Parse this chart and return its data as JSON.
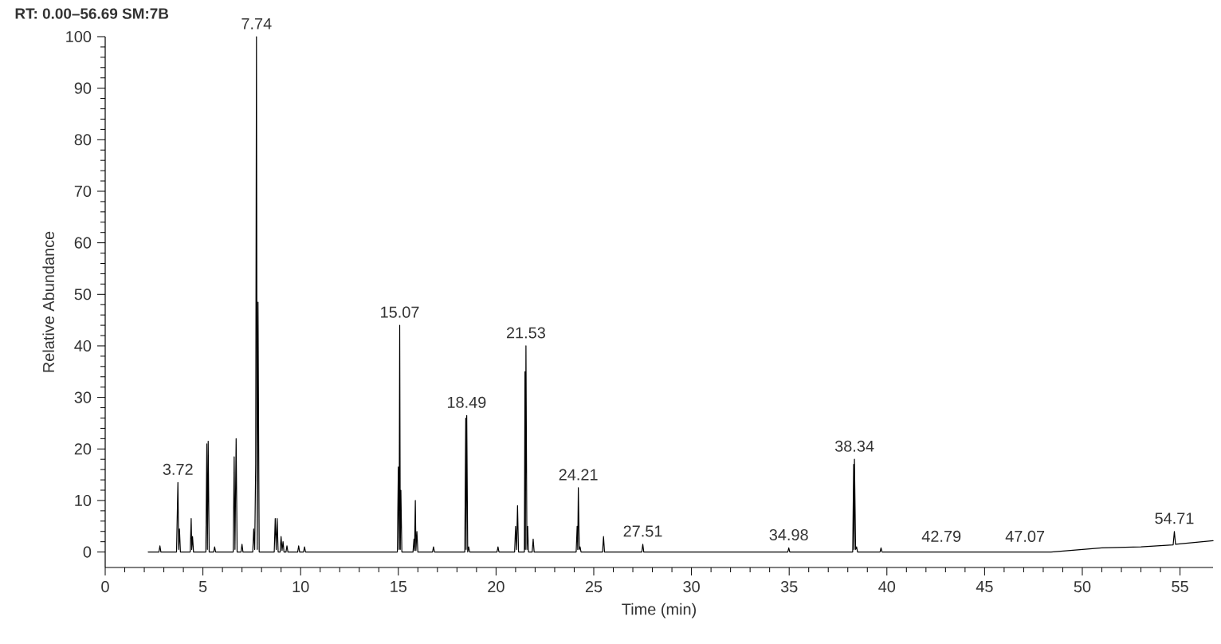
{
  "chart_data": {
    "type": "line",
    "title": "RT: 0.00–56.69  SM:7B",
    "xlabel": "Time (min)",
    "ylabel": "Relative Abundance",
    "xlim": [
      0,
      56.69
    ],
    "ylim": [
      -3,
      100
    ],
    "xticks": [
      0,
      5,
      10,
      15,
      20,
      25,
      30,
      35,
      40,
      45,
      50,
      55
    ],
    "yticks": [
      0,
      10,
      20,
      30,
      40,
      50,
      60,
      70,
      80,
      90,
      100
    ],
    "grid": false,
    "marker": "none",
    "line_style": "solid",
    "series": [
      {
        "color": "#000000",
        "x": [
          2.2,
          2.75,
          2.8,
          2.85,
          3.65,
          3.72,
          3.76,
          3.8,
          3.85,
          4.35,
          4.4,
          4.43,
          4.47,
          4.52,
          5.15,
          5.2,
          5.23,
          5.27,
          5.32,
          5.55,
          5.6,
          5.65,
          6.55,
          6.6,
          6.64,
          6.7,
          6.75,
          6.95,
          7.0,
          7.05,
          7.55,
          7.6,
          7.65,
          7.7,
          7.74,
          7.78,
          7.82,
          7.88,
          8.65,
          8.7,
          8.75,
          8.8,
          8.85,
          8.95,
          9.0,
          9.05,
          9.1,
          9.15,
          9.25,
          9.3,
          9.35,
          9.85,
          9.9,
          9.95,
          10.15,
          10.2,
          10.25,
          14.95,
          15.0,
          15.04,
          15.07,
          15.1,
          15.13,
          15.18,
          15.75,
          15.8,
          15.83,
          15.87,
          15.9,
          15.95,
          16.0,
          16.75,
          16.8,
          16.85,
          18.4,
          18.45,
          18.47,
          18.5,
          18.55,
          18.6,
          18.65,
          20.05,
          20.1,
          20.15,
          20.95,
          21.0,
          21.05,
          21.1,
          21.15,
          21.45,
          21.48,
          21.5,
          21.53,
          21.58,
          21.62,
          21.66,
          21.85,
          21.9,
          21.95,
          24.1,
          24.15,
          24.18,
          24.21,
          24.26,
          24.3,
          24.35,
          25.45,
          25.5,
          25.55,
          27.46,
          27.51,
          27.56,
          34.93,
          34.98,
          35.03,
          38.25,
          38.3,
          38.32,
          38.34,
          38.4,
          38.45,
          38.5,
          39.65,
          39.7,
          39.75,
          48.4,
          51.0,
          53.0,
          54.65,
          54.71,
          54.77,
          56.69
        ],
        "values": [
          0,
          0,
          1.2,
          0,
          0,
          13.5,
          0.5,
          4.5,
          0,
          0,
          6.5,
          0.5,
          3,
          0,
          0,
          21,
          0.5,
          21.5,
          0,
          0,
          1,
          0,
          0,
          18.5,
          0.5,
          22,
          0,
          0,
          1.5,
          0,
          0,
          4.5,
          0.5,
          17,
          100,
          0.5,
          48.5,
          0,
          0,
          6.5,
          0.5,
          6.5,
          0,
          0,
          3,
          0.3,
          2,
          0,
          0,
          1.2,
          0,
          0,
          1.2,
          0,
          0,
          1,
          0,
          0,
          16.5,
          0.5,
          44,
          0.5,
          12,
          0,
          0,
          2.5,
          0.3,
          10,
          0.3,
          4,
          0,
          0,
          1,
          0,
          0,
          26,
          0.5,
          26.5,
          0,
          1,
          0,
          0,
          1,
          0,
          0,
          5,
          0.5,
          9,
          0,
          0,
          35,
          0.5,
          40,
          0.5,
          5,
          0,
          0,
          2.5,
          0,
          0,
          5,
          0.5,
          12.5,
          0.5,
          1,
          0,
          0,
          3,
          0,
          0,
          1.5,
          0,
          0,
          0.8,
          0,
          0,
          17,
          0.5,
          18,
          0.5,
          1,
          0,
          0,
          0.8,
          0,
          0,
          0.8,
          1,
          1.4,
          4,
          1.5,
          2.2
        ]
      }
    ],
    "annotations": [
      {
        "text": "3.72",
        "x": 3.72,
        "y": 13.5
      },
      {
        "text": "7.74",
        "x": 7.74,
        "y": 100
      },
      {
        "text": "15.07",
        "x": 15.07,
        "y": 44
      },
      {
        "text": "18.49",
        "x": 18.49,
        "y": 26.5
      },
      {
        "text": "21.53",
        "x": 21.53,
        "y": 40
      },
      {
        "text": "24.21",
        "x": 24.21,
        "y": 12.5
      },
      {
        "text": "27.51",
        "x": 27.51,
        "y": 1.5
      },
      {
        "text": "34.98",
        "x": 34.98,
        "y": 0.8
      },
      {
        "text": "38.34",
        "x": 38.34,
        "y": 18
      },
      {
        "text": "42.79",
        "x": 42.79,
        "y": 0.5
      },
      {
        "text": "47.07",
        "x": 47.07,
        "y": 0.5
      },
      {
        "text": "54.71",
        "x": 54.71,
        "y": 4
      }
    ]
  }
}
